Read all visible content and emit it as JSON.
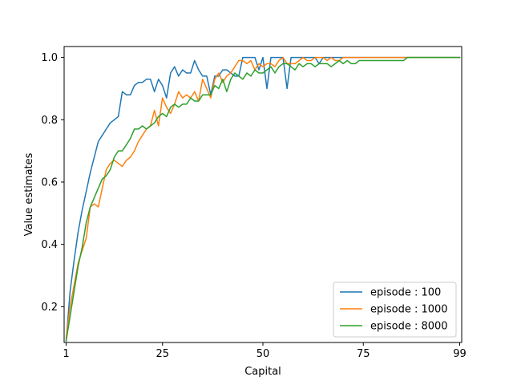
{
  "chart_data": {
    "type": "line",
    "title": "",
    "xlabel": "Capital",
    "ylabel": "Value estimates",
    "xlim": [
      0.5,
      99.5
    ],
    "ylim": [
      0.085,
      1.035
    ],
    "xticks": [
      1,
      25,
      50,
      75,
      99
    ],
    "yticks": [
      0.2,
      0.4,
      0.6,
      0.8,
      1.0
    ],
    "ytick_labels": [
      "0.2",
      "0.4",
      "0.6",
      "0.8",
      "1.0"
    ],
    "grid": false,
    "legend_position": "lower-right",
    "series": [
      {
        "name": "episode : 100",
        "color": "#1f77b4",
        "x": [
          1,
          2,
          3,
          4,
          5,
          6,
          7,
          8,
          9,
          10,
          11,
          12,
          13,
          14,
          15,
          16,
          17,
          18,
          19,
          20,
          21,
          22,
          23,
          24,
          25,
          26,
          27,
          28,
          29,
          30,
          31,
          32,
          33,
          34,
          35,
          36,
          37,
          38,
          39,
          40,
          41,
          42,
          43,
          44,
          45,
          46,
          47,
          48,
          49,
          50,
          51,
          52,
          53,
          54,
          55,
          56,
          57,
          58,
          59,
          60,
          61,
          62,
          63,
          64,
          65,
          66,
          67,
          68,
          69,
          70,
          71,
          72,
          73,
          74,
          75,
          76,
          77,
          78,
          79,
          80,
          81,
          82,
          83,
          84,
          85,
          86,
          87,
          88,
          89,
          90,
          91,
          92,
          93,
          94,
          95,
          96,
          97,
          98,
          99
        ],
        "y": [
          0.09,
          0.25,
          0.35,
          0.44,
          0.51,
          0.57,
          0.63,
          0.68,
          0.73,
          0.75,
          0.77,
          0.79,
          0.8,
          0.81,
          0.89,
          0.88,
          0.88,
          0.91,
          0.92,
          0.92,
          0.93,
          0.93,
          0.89,
          0.93,
          0.91,
          0.87,
          0.95,
          0.97,
          0.94,
          0.96,
          0.95,
          0.95,
          0.99,
          0.96,
          0.94,
          0.94,
          0.88,
          0.94,
          0.94,
          0.96,
          0.96,
          0.95,
          0.94,
          0.94,
          1.0,
          1.0,
          1.0,
          1.0,
          0.96,
          1.0,
          0.9,
          1.0,
          1.0,
          1.0,
          1.0,
          0.9,
          1.0,
          1.0,
          1.0,
          1.0,
          1.0,
          1.0,
          1.0,
          0.98,
          1.0,
          1.0,
          1.0,
          1.0,
          1.0,
          1.0,
          1.0,
          1.0,
          1.0,
          1.0,
          1.0,
          1.0,
          1.0,
          1.0,
          1.0,
          1.0,
          1.0,
          1.0,
          1.0,
          1.0,
          1.0,
          1.0,
          1.0,
          1.0,
          1.0,
          1.0,
          1.0,
          1.0,
          1.0,
          1.0,
          1.0,
          1.0,
          1.0,
          1.0,
          1.0
        ]
      },
      {
        "name": "episode : 1000",
        "color": "#ff7f0e",
        "x": [
          1,
          2,
          3,
          4,
          5,
          6,
          7,
          8,
          9,
          10,
          11,
          12,
          13,
          14,
          15,
          16,
          17,
          18,
          19,
          20,
          21,
          22,
          23,
          24,
          25,
          26,
          27,
          28,
          29,
          30,
          31,
          32,
          33,
          34,
          35,
          36,
          37,
          38,
          39,
          40,
          41,
          42,
          43,
          44,
          45,
          46,
          47,
          48,
          49,
          50,
          51,
          52,
          53,
          54,
          55,
          56,
          57,
          58,
          59,
          60,
          61,
          62,
          63,
          64,
          65,
          66,
          67,
          68,
          69,
          70,
          71,
          72,
          73,
          74,
          75,
          76,
          77,
          78,
          79,
          80,
          81,
          82,
          83,
          84,
          85,
          86,
          87,
          88,
          89,
          90,
          91,
          92,
          93,
          94,
          95,
          96,
          97,
          98,
          99
        ],
        "y": [
          0.1,
          0.2,
          0.27,
          0.34,
          0.38,
          0.42,
          0.52,
          0.53,
          0.52,
          0.58,
          0.64,
          0.66,
          0.67,
          0.66,
          0.65,
          0.67,
          0.68,
          0.7,
          0.73,
          0.75,
          0.77,
          0.78,
          0.83,
          0.78,
          0.87,
          0.84,
          0.82,
          0.85,
          0.89,
          0.87,
          0.88,
          0.87,
          0.89,
          0.86,
          0.93,
          0.9,
          0.87,
          0.93,
          0.95,
          0.92,
          0.94,
          0.95,
          0.97,
          0.99,
          0.99,
          0.98,
          0.99,
          0.96,
          0.98,
          0.97,
          0.98,
          0.98,
          0.97,
          0.99,
          1.0,
          0.98,
          0.98,
          0.98,
          0.99,
          1.0,
          0.99,
          0.99,
          1.0,
          1.0,
          1.0,
          0.99,
          1.0,
          0.99,
          0.99,
          1.0,
          1.0,
          1.0,
          1.0,
          1.0,
          1.0,
          1.0,
          1.0,
          1.0,
          1.0,
          1.0,
          1.0,
          1.0,
          1.0,
          1.0,
          1.0,
          1.0,
          1.0,
          1.0,
          1.0,
          1.0,
          1.0,
          1.0,
          1.0,
          1.0,
          1.0,
          1.0,
          1.0,
          1.0,
          1.0
        ]
      },
      {
        "name": "episode : 8000",
        "color": "#2ca02c",
        "x": [
          1,
          2,
          3,
          4,
          5,
          6,
          7,
          8,
          9,
          10,
          11,
          12,
          13,
          14,
          15,
          16,
          17,
          18,
          19,
          20,
          21,
          22,
          23,
          24,
          25,
          26,
          27,
          28,
          29,
          30,
          31,
          32,
          33,
          34,
          35,
          36,
          37,
          38,
          39,
          40,
          41,
          42,
          43,
          44,
          45,
          46,
          47,
          48,
          49,
          50,
          51,
          52,
          53,
          54,
          55,
          56,
          57,
          58,
          59,
          60,
          61,
          62,
          63,
          64,
          65,
          66,
          67,
          68,
          69,
          70,
          71,
          72,
          73,
          74,
          75,
          76,
          77,
          78,
          79,
          80,
          81,
          82,
          83,
          84,
          85,
          86,
          87,
          88,
          89,
          90,
          91,
          92,
          93,
          94,
          95,
          96,
          97,
          98,
          99
        ],
        "y": [
          0.09,
          0.17,
          0.25,
          0.33,
          0.39,
          0.47,
          0.52,
          0.55,
          0.58,
          0.61,
          0.62,
          0.64,
          0.68,
          0.7,
          0.7,
          0.72,
          0.74,
          0.77,
          0.77,
          0.78,
          0.77,
          0.78,
          0.79,
          0.81,
          0.82,
          0.81,
          0.84,
          0.85,
          0.84,
          0.85,
          0.85,
          0.87,
          0.86,
          0.86,
          0.88,
          0.88,
          0.88,
          0.91,
          0.9,
          0.93,
          0.89,
          0.93,
          0.95,
          0.94,
          0.93,
          0.95,
          0.94,
          0.96,
          0.95,
          0.95,
          0.96,
          0.97,
          0.95,
          0.97,
          0.98,
          0.98,
          0.97,
          0.96,
          0.98,
          0.97,
          0.98,
          0.98,
          0.97,
          0.98,
          0.98,
          0.98,
          0.97,
          0.98,
          0.99,
          0.98,
          0.99,
          0.98,
          0.98,
          0.99,
          0.99,
          0.99,
          0.99,
          0.99,
          0.99,
          0.99,
          0.99,
          0.99,
          0.99,
          0.99,
          0.99,
          1.0,
          1.0,
          1.0,
          1.0,
          1.0,
          1.0,
          1.0,
          1.0,
          1.0,
          1.0,
          1.0,
          1.0,
          1.0,
          1.0
        ]
      }
    ]
  }
}
